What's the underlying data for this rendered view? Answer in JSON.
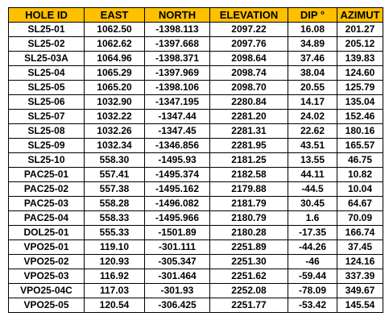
{
  "table": {
    "headers": [
      "HOLE ID",
      "EAST",
      "NORTH",
      "ELEVATION",
      "DIP °",
      "AZIMUT"
    ],
    "rows": [
      [
        "SL25-01",
        "1062.50",
        "-1398.113",
        "2097.22",
        "16.08",
        "201.27"
      ],
      [
        "SL25-02",
        "1062.62",
        "-1397.668",
        "2097.76",
        "34.89",
        "205.12"
      ],
      [
        "SL25-03A",
        "1064.96",
        "-1398.371",
        "2098.64",
        "37.46",
        "139.83"
      ],
      [
        "SL25-04",
        "1065.29",
        "-1397.969",
        "2098.74",
        "38.04",
        "124.60"
      ],
      [
        "SL25-05",
        "1065.20",
        "-1398.106",
        "2098.70",
        "20.55",
        "125.79"
      ],
      [
        "SL25-06",
        "1032.90",
        "-1347.195",
        "2280.84",
        "14.17",
        "135.04"
      ],
      [
        "SL25-07",
        "1032.22",
        "-1347.44",
        "2281.20",
        "24.02",
        "152.46"
      ],
      [
        "SL25-08",
        "1032.26",
        "-1347.45",
        "2281.31",
        "22.62",
        "180.16"
      ],
      [
        "SL25-09",
        "1032.34",
        "-1346.856",
        "2281.95",
        "43.51",
        "165.57"
      ],
      [
        "SL25-10",
        "558.30",
        "-1495.93",
        "2181.25",
        "13.55",
        "46.75"
      ],
      [
        "PAC25-01",
        "557.41",
        "-1495.374",
        "2182.58",
        "44.11",
        "10.82"
      ],
      [
        "PAC25-02",
        "557.38",
        "-1495.162",
        "2179.88",
        "-44.5",
        "10.04"
      ],
      [
        "PAC25-03",
        "558.28",
        "-1496.082",
        "2181.79",
        "30.45",
        "64.67"
      ],
      [
        "PAC25-04",
        "558.33",
        "-1495.966",
        "2180.79",
        "1.6",
        "70.09"
      ],
      [
        "DOL25-01",
        "555.33",
        "-1501.89",
        "2180.28",
        "-17.35",
        "166.74"
      ],
      [
        "VPO25-01",
        "119.10",
        "-301.111",
        "2251.89",
        "-44.26",
        "37.45"
      ],
      [
        "VPO25-02",
        "120.93",
        "-305.347",
        "2251.30",
        "-46",
        "124.16"
      ],
      [
        "VPO25-03",
        "116.92",
        "-301.464",
        "2251.62",
        "-59.44",
        "337.39"
      ],
      [
        "VPO25-04C",
        "117.03",
        "-301.93",
        "2252.08",
        "-78.09",
        "349.67"
      ],
      [
        "VPO25-05",
        "120.54",
        "-306.425",
        "2251.77",
        "-53.42",
        "145.54"
      ]
    ]
  },
  "colors": {
    "header_fill": "#ffc000",
    "border": "#000000",
    "text": "#000000"
  }
}
